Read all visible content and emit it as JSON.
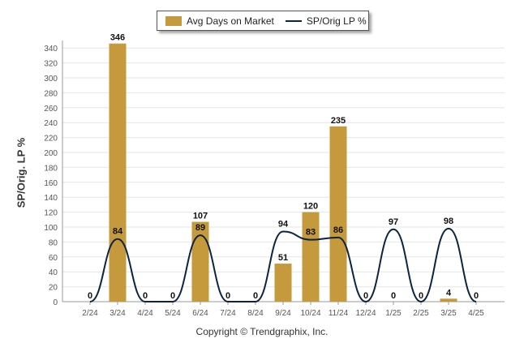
{
  "legend": {
    "bar_label": "Avg Days on Market",
    "line_label": "SP/Orig LP %"
  },
  "copyright": "Copyright © Trendgraphix, Inc.",
  "colors": {
    "bar": "#C49A3C",
    "line": "#0D2440",
    "grid": "#e6e6e6",
    "axis": "#999999",
    "tick_text": "#555555",
    "label_text": "#111111"
  },
  "chart_data": {
    "type": "bar",
    "ylabel": "SP/Orig. LP %",
    "ylim": [
      0,
      350
    ],
    "y_ticks": [
      0,
      20,
      40,
      60,
      80,
      100,
      120,
      140,
      160,
      180,
      200,
      220,
      240,
      260,
      280,
      300,
      320,
      340
    ],
    "grid": true,
    "legend_position": "top-center",
    "categories": [
      "2/24",
      "3/24",
      "4/24",
      "5/24",
      "6/24",
      "7/24",
      "8/24",
      "9/24",
      "10/24",
      "11/24",
      "12/24",
      "1/25",
      "2/25",
      "3/25",
      "4/25"
    ],
    "series": [
      {
        "name": "Avg Days on Market",
        "type": "bar",
        "values": [
          0,
          346,
          0,
          0,
          107,
          0,
          0,
          51,
          120,
          235,
          0,
          0,
          0,
          4,
          0
        ],
        "labels": [
          "0",
          "346",
          "0",
          "0",
          "107",
          "0",
          "0",
          "51",
          "120",
          "235",
          "0",
          "0",
          "0",
          "4",
          "0"
        ]
      },
      {
        "name": "SP/Orig LP %",
        "type": "line",
        "values": [
          0,
          84,
          0,
          0,
          89,
          0,
          0,
          94,
          83,
          86,
          0,
          97,
          0,
          98,
          0
        ],
        "labels": [
          "",
          "84",
          "",
          "",
          "89",
          "",
          "",
          "94",
          "83",
          "86",
          "",
          "97",
          "",
          "98",
          ""
        ]
      }
    ]
  }
}
